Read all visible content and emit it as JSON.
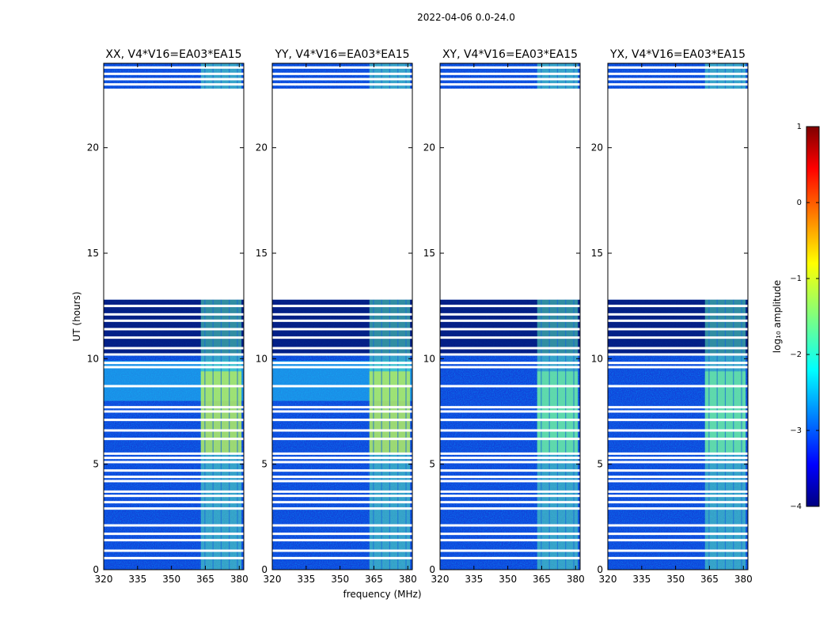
{
  "figure": {
    "suptitle": "2022-04-06 0.0-24.0",
    "xlabel": "frequency (MHz)",
    "ylabel": "UT (hours)"
  },
  "chart_data": {
    "type": "heatmap",
    "x_range": [
      320,
      382
    ],
    "y_range": [
      0,
      24
    ],
    "x_ticks": [
      320,
      335,
      350,
      365,
      380
    ],
    "y_ticks": [
      0,
      5,
      10,
      15,
      20
    ],
    "panels": [
      {
        "title": "XX, V4*V16=EA03*EA15",
        "pol": "XX"
      },
      {
        "title": "YY, V4*V16=EA03*EA15",
        "pol": "YY"
      },
      {
        "title": "XY, V4*V16=EA03*EA15",
        "pol": "XY"
      },
      {
        "title": "YX, V4*V16=EA03*EA15",
        "pol": "YX"
      }
    ],
    "data_gap_hours": [
      12.8,
      22.8
    ],
    "flagged_rows_hours": [
      0.55,
      0.9,
      1.4,
      1.7,
      2.1,
      2.9,
      3.2,
      3.5,
      3.7,
      4.2,
      4.4,
      4.7,
      5.1,
      5.3,
      5.5,
      6.2,
      6.6,
      7.1,
      7.5,
      7.7,
      8.7,
      9.6,
      9.8,
      10.2,
      10.5,
      11.0,
      11.4,
      11.8,
      12.1,
      12.5,
      23.0,
      23.25,
      23.5,
      23.8
    ],
    "rfi_band_mhz": [
      363,
      381
    ],
    "colorbar": {
      "label": "log₁₀ amplitude",
      "min": -4,
      "max": 1,
      "ticks": [
        1,
        0,
        -1,
        -2,
        -3,
        -4
      ],
      "tick_labels": [
        "1",
        "0",
        "−1",
        "−2",
        "−3",
        "−4"
      ],
      "colormap": [
        "#00007f",
        "#0000ff",
        "#007fff",
        "#00ffff",
        "#7fff7f",
        "#ffff00",
        "#ff7f00",
        "#ff0000",
        "#7f0000"
      ]
    }
  }
}
